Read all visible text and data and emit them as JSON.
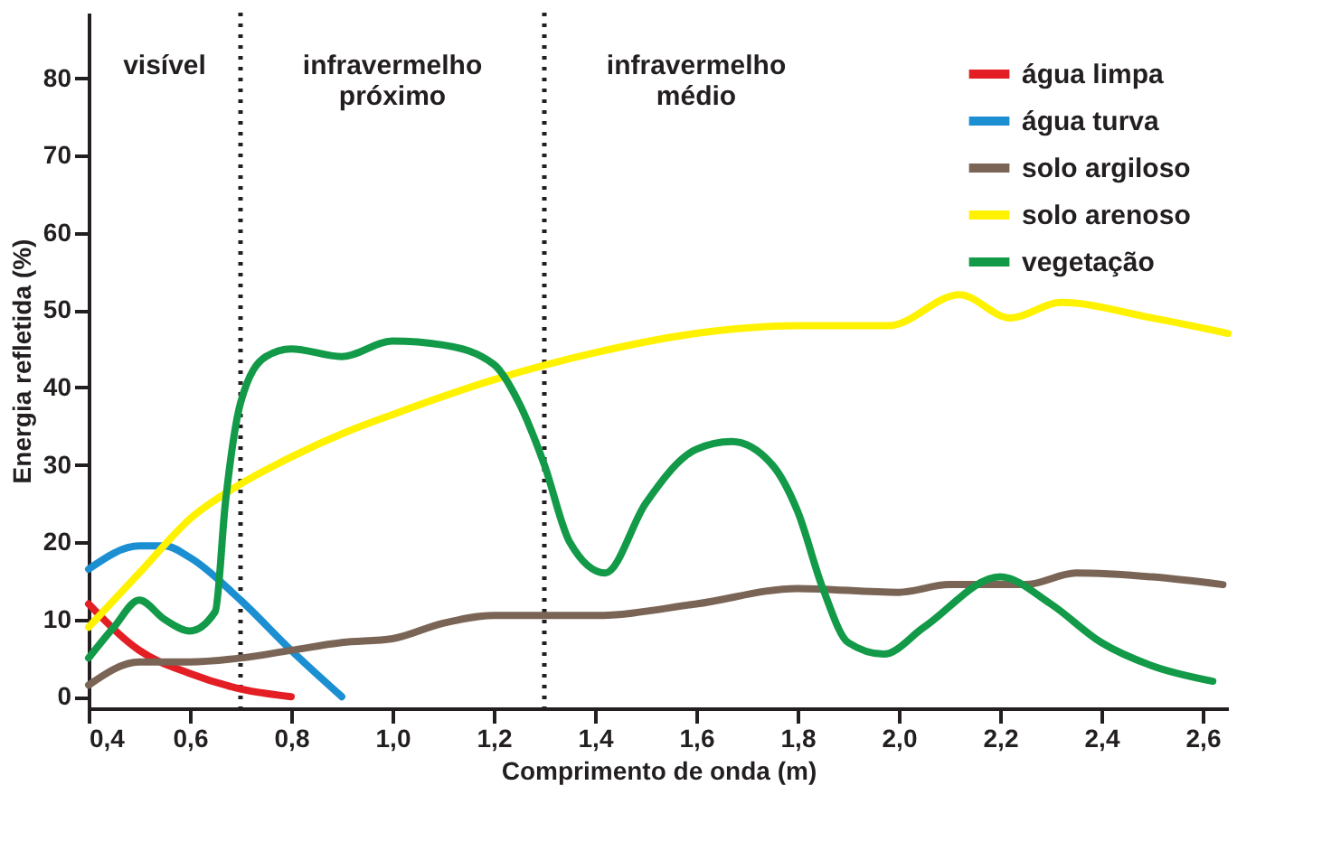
{
  "chart_data": {
    "type": "line",
    "xlabel": "Comprimento de onda (m)",
    "ylabel": "Energia refletida (%)",
    "xlim": [
      0.4,
      2.65
    ],
    "ylim": [
      -1.5,
      88.5
    ],
    "xticks": [
      {
        "value": 0.4,
        "label": "0,4"
      },
      {
        "value": 0.6,
        "label": "0,6"
      },
      {
        "value": 0.8,
        "label": "0,8"
      },
      {
        "value": 1.0,
        "label": "1,0"
      },
      {
        "value": 1.2,
        "label": "1,2"
      },
      {
        "value": 1.4,
        "label": "1,4"
      },
      {
        "value": 1.6,
        "label": "1,6"
      },
      {
        "value": 1.8,
        "label": "1,8"
      },
      {
        "value": 2.0,
        "label": "2,0"
      },
      {
        "value": 2.2,
        "label": "2,2"
      },
      {
        "value": 2.4,
        "label": "2,4"
      },
      {
        "value": 2.6,
        "label": "2,6"
      }
    ],
    "yticks": [
      0,
      10,
      20,
      30,
      40,
      50,
      60,
      70,
      80
    ],
    "grid": false,
    "legend": "top right",
    "marker": "none",
    "line_style": "solid",
    "series": [
      {
        "name": "água limpa",
        "color": "#e31e24",
        "x": [
          0.4,
          0.5,
          0.6,
          0.7,
          0.8
        ],
        "values": [
          12,
          6,
          3,
          1,
          0
        ]
      },
      {
        "name": "água turva",
        "color": "#1b8fd2",
        "x": [
          0.4,
          0.5,
          0.55,
          0.6,
          0.7,
          0.8,
          0.9
        ],
        "values": [
          16.5,
          19.5,
          19.5,
          18,
          12.5,
          6,
          0
        ]
      },
      {
        "name": "solo argiloso",
        "color": "#7a6455",
        "x": [
          0.4,
          0.5,
          0.6,
          0.7,
          0.8,
          0.9,
          1.0,
          1.1,
          1.2,
          1.4,
          1.6,
          1.8,
          2.0,
          2.1,
          2.25,
          2.35,
          2.5,
          2.64
        ],
        "values": [
          1.5,
          4.5,
          4.5,
          5,
          6,
          7,
          7.5,
          9.5,
          10.5,
          10.5,
          12,
          14,
          13.5,
          14.5,
          14.5,
          16,
          15.5,
          14.5
        ]
      },
      {
        "name": "solo arenoso",
        "color": "#fff200",
        "x": [
          0.4,
          0.5,
          0.6,
          0.7,
          0.8,
          0.9,
          1.0,
          1.2,
          1.4,
          1.6,
          1.8,
          1.98,
          2.12,
          2.22,
          2.32,
          2.5,
          2.65
        ],
        "values": [
          9,
          16,
          23,
          27.5,
          31,
          34,
          36.5,
          41,
          44.5,
          47,
          48,
          48,
          52,
          49,
          51,
          49,
          47
        ]
      },
      {
        "name": "vegetação",
        "color": "#129a48",
        "x": [
          0.4,
          0.45,
          0.5,
          0.55,
          0.6,
          0.65,
          0.67,
          0.7,
          0.75,
          0.8,
          0.9,
          1.0,
          1.1,
          1.2,
          1.25,
          1.3,
          1.35,
          1.42,
          1.5,
          1.6,
          1.67,
          1.75,
          1.8,
          1.85,
          1.9,
          1.97,
          2.05,
          2.2,
          2.3,
          2.4,
          2.5,
          2.62
        ],
        "values": [
          5,
          9,
          12.5,
          10,
          8.5,
          11,
          25,
          38,
          44,
          45,
          44,
          46,
          45.5,
          43,
          38,
          30,
          20,
          16,
          25,
          32,
          33,
          30,
          24,
          14,
          7,
          5.5,
          9,
          15.5,
          12,
          7,
          4,
          2
        ]
      }
    ],
    "ref_lines": [
      {
        "axis": "x",
        "value": 0.7,
        "color": "#231f20",
        "line_style": "dotted"
      },
      {
        "axis": "x",
        "value": 1.3,
        "color": "#231f20",
        "line_style": "dotted"
      }
    ],
    "annotations": [
      "visível",
      "infravermelho\npróximo",
      "infravermelho\nmédio"
    ]
  }
}
